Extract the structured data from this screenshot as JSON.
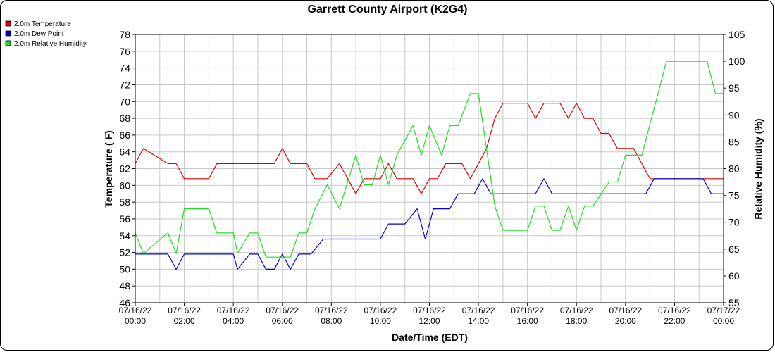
{
  "chart_data": {
    "type": "line",
    "title": "Garrett County Airport (K2G4)",
    "xlabel": "Date/Time (EDT)",
    "ylabel_left": "Temperature ( F)",
    "ylabel_right": "Relative Humidity (%)",
    "ylim_left": [
      46,
      78
    ],
    "ylim_right": [
      55,
      105
    ],
    "xlim_hours": [
      0,
      24
    ],
    "grid": true,
    "legend_position": "top-left",
    "x_ticks": [
      {
        "date": "07/16/22",
        "time": "00:00"
      },
      {
        "date": "07/16/22",
        "time": "02:00"
      },
      {
        "date": "07/16/22",
        "time": "04:00"
      },
      {
        "date": "07/16/22",
        "time": "06:00"
      },
      {
        "date": "07/16/22",
        "time": "08:00"
      },
      {
        "date": "07/16/22",
        "time": "10:00"
      },
      {
        "date": "07/16/22",
        "time": "12:00"
      },
      {
        "date": "07/16/22",
        "time": "14:00"
      },
      {
        "date": "07/16/22",
        "time": "16:00"
      },
      {
        "date": "07/16/22",
        "time": "18:00"
      },
      {
        "date": "07/16/22",
        "time": "20:00"
      },
      {
        "date": "07/16/22",
        "time": "22:00"
      },
      {
        "date": "07/17/22",
        "time": "00:00"
      }
    ],
    "y_ticks_left": [
      46,
      48,
      50,
      52,
      54,
      56,
      58,
      60,
      62,
      64,
      66,
      68,
      70,
      72,
      74,
      76,
      78
    ],
    "y_ticks_right": [
      55,
      60,
      65,
      70,
      75,
      80,
      85,
      90,
      95,
      100,
      105
    ],
    "series": [
      {
        "name": "2.0m Temperature",
        "color": "#dd0000",
        "axis": "left",
        "points": [
          [
            0,
            62.6
          ],
          [
            0.33,
            64.4
          ],
          [
            1.33,
            62.6
          ],
          [
            1.67,
            62.6
          ],
          [
            2,
            60.8
          ],
          [
            3,
            60.8
          ],
          [
            3.33,
            62.6
          ],
          [
            5.67,
            62.6
          ],
          [
            6,
            64.4
          ],
          [
            6.33,
            62.6
          ],
          [
            7,
            62.6
          ],
          [
            7.33,
            60.8
          ],
          [
            7.83,
            60.8
          ],
          [
            8.33,
            62.6
          ],
          [
            9,
            59.0
          ],
          [
            9.33,
            60.8
          ],
          [
            10,
            60.8
          ],
          [
            10.33,
            62.6
          ],
          [
            10.67,
            60.8
          ],
          [
            11.33,
            60.8
          ],
          [
            11.67,
            59.0
          ],
          [
            12,
            60.8
          ],
          [
            12.33,
            60.8
          ],
          [
            12.67,
            62.6
          ],
          [
            13.33,
            62.6
          ],
          [
            13.67,
            60.8
          ],
          [
            14.33,
            64.4
          ],
          [
            14.67,
            68.0
          ],
          [
            15,
            69.8
          ],
          [
            16,
            69.8
          ],
          [
            16.33,
            68.0
          ],
          [
            16.67,
            69.8
          ],
          [
            17.33,
            69.8
          ],
          [
            17.67,
            68.0
          ],
          [
            18,
            69.8
          ],
          [
            18.33,
            68.0
          ],
          [
            18.67,
            68.0
          ],
          [
            19,
            66.2
          ],
          [
            19.33,
            66.2
          ],
          [
            19.67,
            64.4
          ],
          [
            20.33,
            64.4
          ],
          [
            21,
            60.8
          ],
          [
            24,
            60.8
          ]
        ]
      },
      {
        "name": "2.0m Dew Point",
        "color": "#0000cc",
        "axis": "left",
        "points": [
          [
            0,
            51.8
          ],
          [
            1.33,
            51.8
          ],
          [
            1.67,
            50.0
          ],
          [
            2,
            51.8
          ],
          [
            4,
            51.8
          ],
          [
            4.17,
            50.0
          ],
          [
            4.67,
            51.8
          ],
          [
            5,
            51.8
          ],
          [
            5.33,
            50.0
          ],
          [
            5.67,
            50.0
          ],
          [
            6,
            51.8
          ],
          [
            6.33,
            50.0
          ],
          [
            6.67,
            51.8
          ],
          [
            7.17,
            51.8
          ],
          [
            7.67,
            53.6
          ],
          [
            10,
            53.6
          ],
          [
            10.33,
            55.4
          ],
          [
            11,
            55.4
          ],
          [
            11.5,
            57.2
          ],
          [
            11.83,
            53.6
          ],
          [
            12.17,
            57.2
          ],
          [
            12.83,
            57.2
          ],
          [
            13.17,
            59.0
          ],
          [
            13.83,
            59.0
          ],
          [
            14.17,
            60.8
          ],
          [
            14.5,
            59.0
          ],
          [
            16.33,
            59.0
          ],
          [
            16.67,
            60.8
          ],
          [
            17,
            59.0
          ],
          [
            20.83,
            59.0
          ],
          [
            21.17,
            60.8
          ],
          [
            23.17,
            60.8
          ],
          [
            23.5,
            59.0
          ],
          [
            24,
            59.0
          ]
        ]
      },
      {
        "name": "2.0m Relative Humidity",
        "color": "#22dd22",
        "axis": "right",
        "points": [
          [
            0,
            68.0
          ],
          [
            0.33,
            64.2
          ],
          [
            1.33,
            68.0
          ],
          [
            1.67,
            64.2
          ],
          [
            2,
            72.5
          ],
          [
            3,
            72.5
          ],
          [
            3.33,
            68.0
          ],
          [
            4,
            68.0
          ],
          [
            4.17,
            64.2
          ],
          [
            4.67,
            68.0
          ],
          [
            5,
            68.0
          ],
          [
            5.33,
            63.5
          ],
          [
            6,
            63.5
          ],
          [
            6.33,
            63.5
          ],
          [
            6.67,
            68.0
          ],
          [
            7,
            68.0
          ],
          [
            7.33,
            72.5
          ],
          [
            7.83,
            77.0
          ],
          [
            8.33,
            72.5
          ],
          [
            9,
            82.5
          ],
          [
            9.33,
            77.0
          ],
          [
            9.67,
            77.0
          ],
          [
            10,
            82.5
          ],
          [
            10.33,
            77.0
          ],
          [
            10.67,
            82.5
          ],
          [
            11.33,
            88.0
          ],
          [
            11.67,
            82.5
          ],
          [
            12,
            88.0
          ],
          [
            12.5,
            82.5
          ],
          [
            12.83,
            88.0
          ],
          [
            13.17,
            88.0
          ],
          [
            13.67,
            94.0
          ],
          [
            14,
            94.0
          ],
          [
            14.67,
            73.0
          ],
          [
            15,
            68.5
          ],
          [
            16,
            68.5
          ],
          [
            16.33,
            73.0
          ],
          [
            16.67,
            73.0
          ],
          [
            17,
            68.5
          ],
          [
            17.33,
            68.5
          ],
          [
            17.67,
            73.0
          ],
          [
            18,
            68.5
          ],
          [
            18.33,
            73.0
          ],
          [
            18.67,
            73.0
          ],
          [
            19.33,
            77.5
          ],
          [
            19.67,
            77.5
          ],
          [
            20,
            82.5
          ],
          [
            20.67,
            82.5
          ],
          [
            21.67,
            100.0
          ],
          [
            23.33,
            100.0
          ],
          [
            23.67,
            94.0
          ],
          [
            24,
            94.0
          ]
        ]
      }
    ]
  }
}
